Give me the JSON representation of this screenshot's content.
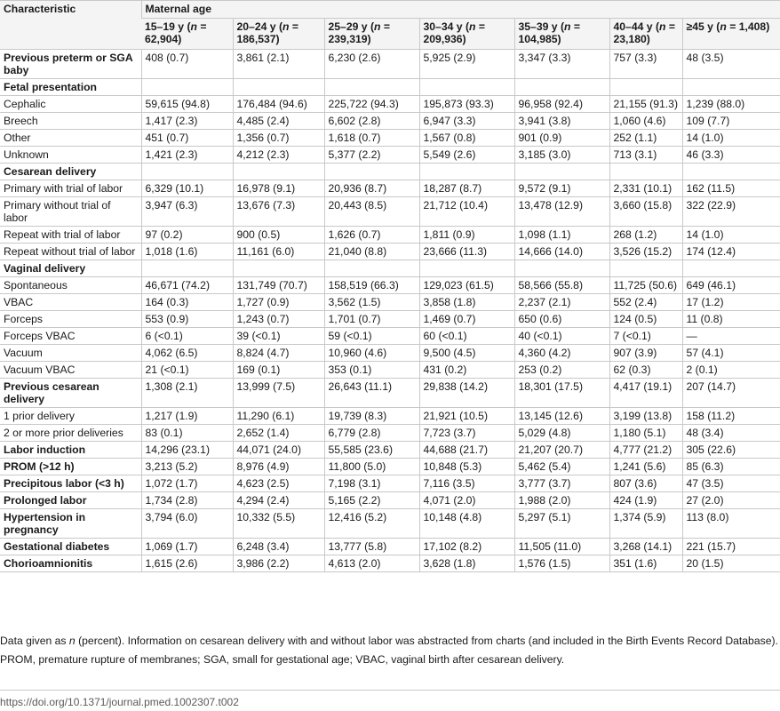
{
  "header": {
    "characteristic": "Characteristic",
    "group": "Maternal age",
    "columns": [
      {
        "label": "15–19 y (",
        "n": "n",
        "value": " = 62,904)"
      },
      {
        "label": "20–24 y (",
        "n": "n",
        "value": " = 186,537)"
      },
      {
        "label": "25–29 y (",
        "n": "n",
        "value": " = 239,319)"
      },
      {
        "label": "30–34 y (",
        "n": "n",
        "value": " = 209,936)"
      },
      {
        "label": "35–39 y (",
        "n": "n",
        "value": " = 104,985)"
      },
      {
        "label": "40–44 y (",
        "n": "n",
        "value": " = 23,180)"
      },
      {
        "label": "≥45 y (",
        "n": "n",
        "value": " = 1,408)"
      }
    ]
  },
  "rows": [
    {
      "label": "Previous preterm or SGA baby",
      "bold": true,
      "cells": [
        "408 (0.7)",
        "3,861 (2.1)",
        "6,230 (2.6)",
        "5,925 (2.9)",
        "3,347 (3.3)",
        "757 (3.3)",
        "48 (3.5)"
      ]
    },
    {
      "label": "Fetal presentation",
      "bold": true,
      "cells": [
        "",
        "",
        "",
        "",
        "",
        "",
        ""
      ]
    },
    {
      "label": "Cephalic",
      "bold": false,
      "cells": [
        "59,615 (94.8)",
        "176,484 (94.6)",
        "225,722 (94.3)",
        "195,873 (93.3)",
        "96,958 (92.4)",
        "21,155 (91.3)",
        "1,239 (88.0)"
      ]
    },
    {
      "label": "Breech",
      "bold": false,
      "cells": [
        "1,417 (2.3)",
        "4,485 (2.4)",
        "6,602 (2.8)",
        "6,947 (3.3)",
        "3,941 (3.8)",
        "1,060 (4.6)",
        "109 (7.7)"
      ]
    },
    {
      "label": "Other",
      "bold": false,
      "cells": [
        "451 (0.7)",
        "1,356 (0.7)",
        "1,618 (0.7)",
        "1,567 (0.8)",
        "901 (0.9)",
        "252 (1.1)",
        "14 (1.0)"
      ]
    },
    {
      "label": "Unknown",
      "bold": false,
      "cells": [
        "1,421 (2.3)",
        "4,212 (2.3)",
        "5,377 (2.2)",
        "5,549 (2.6)",
        "3,185 (3.0)",
        "713 (3.1)",
        "46 (3.3)"
      ]
    },
    {
      "label": "Cesarean delivery",
      "bold": true,
      "cells": [
        "",
        "",
        "",
        "",
        "",
        "",
        ""
      ]
    },
    {
      "label": "Primary with trial of labor",
      "bold": false,
      "cells": [
        "6,329 (10.1)",
        "16,978 (9.1)",
        "20,936 (8.7)",
        "18,287 (8.7)",
        "9,572 (9.1)",
        "2,331 (10.1)",
        "162 (11.5)"
      ]
    },
    {
      "label": "Primary without trial of labor",
      "bold": false,
      "cells": [
        "3,947 (6.3)",
        "13,676 (7.3)",
        "20,443 (8.5)",
        "21,712 (10.4)",
        "13,478 (12.9)",
        "3,660 (15.8)",
        "322 (22.9)"
      ]
    },
    {
      "label": "Repeat with trial of labor",
      "bold": false,
      "cells": [
        "97 (0.2)",
        "900 (0.5)",
        "1,626 (0.7)",
        "1,811 (0.9)",
        "1,098 (1.1)",
        "268 (1.2)",
        "14 (1.0)"
      ]
    },
    {
      "label": "Repeat without trial of labor",
      "bold": false,
      "cells": [
        "1,018 (1.6)",
        "11,161 (6.0)",
        "21,040 (8.8)",
        "23,666 (11.3)",
        "14,666 (14.0)",
        "3,526 (15.2)",
        "174 (12.4)"
      ]
    },
    {
      "label": "Vaginal delivery",
      "bold": true,
      "cells": [
        "",
        "",
        "",
        "",
        "",
        "",
        ""
      ]
    },
    {
      "label": "Spontaneous",
      "bold": false,
      "cells": [
        "46,671 (74.2)",
        "131,749 (70.7)",
        "158,519 (66.3)",
        "129,023 (61.5)",
        "58,566 (55.8)",
        "11,725 (50.6)",
        "649 (46.1)"
      ]
    },
    {
      "label": "VBAC",
      "bold": false,
      "cells": [
        "164 (0.3)",
        "1,727 (0.9)",
        "3,562 (1.5)",
        "3,858 (1.8)",
        "2,237 (2.1)",
        "552 (2.4)",
        "17 (1.2)"
      ]
    },
    {
      "label": "Forceps",
      "bold": false,
      "cells": [
        "553 (0.9)",
        "1,243 (0.7)",
        "1,701 (0.7)",
        "1,469 (0.7)",
        "650 (0.6)",
        "124 (0.5)",
        "11 (0.8)"
      ]
    },
    {
      "label": "Forceps VBAC",
      "bold": false,
      "cells": [
        "6 (<0.1)",
        "39 (<0.1)",
        "59 (<0.1)",
        "60 (<0.1)",
        "40 (<0.1)",
        "7 (<0.1)",
        "—"
      ]
    },
    {
      "label": "Vacuum",
      "bold": false,
      "cells": [
        "4,062 (6.5)",
        "8,824 (4.7)",
        "10,960 (4.6)",
        "9,500 (4.5)",
        "4,360 (4.2)",
        "907 (3.9)",
        "57 (4.1)"
      ]
    },
    {
      "label": "Vacuum VBAC",
      "bold": false,
      "cells": [
        "21 (<0.1)",
        "169 (0.1)",
        "353 (0.1)",
        "431 (0.2)",
        "253 (0.2)",
        "62 (0.3)",
        "2 (0.1)"
      ]
    },
    {
      "label": "Previous cesarean delivery",
      "bold": true,
      "cells": [
        "1,308 (2.1)",
        "13,999 (7.5)",
        "26,643 (11.1)",
        "29,838 (14.2)",
        "18,301 (17.5)",
        "4,417 (19.1)",
        "207 (14.7)"
      ]
    },
    {
      "label": "1 prior delivery",
      "bold": false,
      "cells": [
        "1,217 (1.9)",
        "11,290 (6.1)",
        "19,739 (8.3)",
        "21,921 (10.5)",
        "13,145 (12.6)",
        "3,199 (13.8)",
        "158 (11.2)"
      ]
    },
    {
      "label": "2 or more prior deliveries",
      "bold": false,
      "cells": [
        "83 (0.1)",
        "2,652 (1.4)",
        "6,779 (2.8)",
        "7,723 (3.7)",
        "5,029 (4.8)",
        "1,180 (5.1)",
        "48 (3.4)"
      ]
    },
    {
      "label": "Labor induction",
      "bold": true,
      "cells": [
        "14,296 (23.1)",
        "44,071 (24.0)",
        "55,585 (23.6)",
        "44,688 (21.7)",
        "21,207 (20.7)",
        "4,777 (21.2)",
        "305 (22.6)"
      ]
    },
    {
      "label": "PROM (>12 h)",
      "bold": true,
      "cells": [
        "3,213 (5.2)",
        "8,976 (4.9)",
        "11,800 (5.0)",
        "10,848 (5.3)",
        "5,462 (5.4)",
        "1,241 (5.6)",
        "85 (6.3)"
      ]
    },
    {
      "label": "Precipitous labor (<3 h)",
      "bold": true,
      "cells": [
        "1,072 (1.7)",
        "4,623 (2.5)",
        "7,198 (3.1)",
        "7,116 (3.5)",
        "3,777 (3.7)",
        "807 (3.6)",
        "47 (3.5)"
      ]
    },
    {
      "label": "Prolonged labor",
      "bold": true,
      "cells": [
        "1,734 (2.8)",
        "4,294 (2.4)",
        "5,165 (2.2)",
        "4,071 (2.0)",
        "1,988 (2.0)",
        "424 (1.9)",
        "27 (2.0)"
      ]
    },
    {
      "label": "Hypertension in pregnancy",
      "bold": true,
      "cells": [
        "3,794 (6.0)",
        "10,332 (5.5)",
        "12,416 (5.2)",
        "10,148 (4.8)",
        "5,297 (5.1)",
        "1,374 (5.9)",
        "113 (8.0)"
      ]
    },
    {
      "label": "Gestational diabetes",
      "bold": true,
      "cells": [
        "1,069 (1.7)",
        "6,248 (3.4)",
        "13,777 (5.8)",
        "17,102 (8.2)",
        "11,505 (11.0)",
        "3,268 (14.1)",
        "221 (15.7)"
      ]
    },
    {
      "label": "Chorioamnionitis",
      "bold": true,
      "cells": [
        "1,615 (2.6)",
        "3,986 (2.2)",
        "4,613 (2.0)",
        "3,628 (1.8)",
        "1,576 (1.5)",
        "351 (1.6)",
        "20 (1.5)"
      ]
    }
  ],
  "notes": {
    "n1_pre": "Data given as ",
    "n1_n": "n",
    "n1_post": " (percent). Information on cesarean delivery with and without labor was abstracted from charts (and included in the Birth Events Record Database).",
    "n2": "PROM, premature rupture of membranes; SGA, small for gestational age; VBAC, vaginal birth after cesarean delivery."
  },
  "doi": "https://doi.org/10.1371/journal.pmed.1002307.t002"
}
